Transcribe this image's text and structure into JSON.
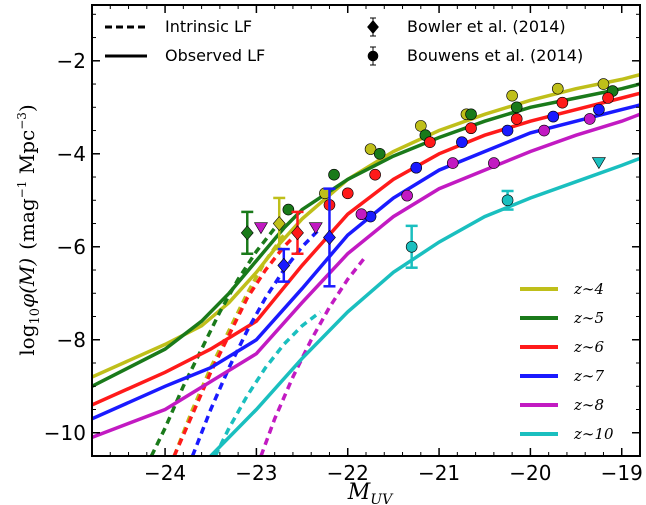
{
  "chart_data": {
    "type": "line",
    "xlabel": "M",
    "xlabel_sub": "UV",
    "ylabel_pre": "log",
    "ylabel_sub": "10",
    "ylabel_mid": "φ(M)",
    "ylabel_unit_open": "(mag",
    "ylabel_unit_exp1": "−1",
    "ylabel_unit_mid": " Mpc",
    "ylabel_unit_exp2": "−3",
    "ylabel_unit_close": ")",
    "xlim": [
      -24.8,
      -18.8
    ],
    "ylim": [
      -10.5,
      -0.8
    ],
    "x_axis_inverted": false,
    "xticks": [
      -24,
      -23,
      -22,
      -21,
      -20,
      -19
    ],
    "xtick_labels": [
      "−24",
      "−23",
      "−22",
      "−21",
      "−20",
      "−19"
    ],
    "yticks": [
      -10,
      -8,
      -6,
      -4,
      -2
    ],
    "ytick_labels": [
      "−10",
      "−8",
      "−6",
      "−4",
      "−2"
    ],
    "grid": false,
    "style_legend": {
      "placement": "top",
      "entries": [
        {
          "label": "Intrinsic LF",
          "style": "dashed"
        },
        {
          "label": "Observed LF",
          "style": "solid"
        },
        {
          "label": "Bowler et al. (2014)",
          "marker": "diamond"
        },
        {
          "label": "Bouwens et al. (2014)",
          "marker": "circle"
        }
      ]
    },
    "series_legend_placement": "bottom-right",
    "series": [
      {
        "name": "z∼4",
        "color": "#bfbf1a",
        "observed": {
          "x": [
            -24.8,
            -24.0,
            -23.6,
            -23.3,
            -23.0,
            -22.8,
            -22.5,
            -22.0,
            -21.5,
            -21.0,
            -20.5,
            -20.0,
            -19.5,
            -19.0,
            -18.8
          ],
          "y": [
            -8.8,
            -8.1,
            -7.7,
            -7.2,
            -6.55,
            -6.05,
            -5.4,
            -4.55,
            -3.95,
            -3.5,
            -3.15,
            -2.85,
            -2.6,
            -2.4,
            -2.3
          ]
        },
        "intrinsic": {
          "x": [
            -23.9,
            -23.7,
            -23.5,
            -23.3,
            -23.1,
            -22.9,
            -22.7
          ],
          "y": [
            -10.5,
            -9.5,
            -8.6,
            -7.8,
            -7.0,
            -6.3,
            -5.75
          ]
        },
        "points": [
          {
            "x": -22.75,
            "y": -5.5,
            "yerr": 0.55,
            "marker": "diamond"
          },
          {
            "x": -22.25,
            "y": -4.85,
            "marker": "circle"
          },
          {
            "x": -21.75,
            "y": -3.9,
            "marker": "circle"
          },
          {
            "x": -21.2,
            "y": -3.4,
            "marker": "circle"
          },
          {
            "x": -20.7,
            "y": -3.15,
            "marker": "circle"
          },
          {
            "x": -20.2,
            "y": -2.75,
            "marker": "circle"
          },
          {
            "x": -19.7,
            "y": -2.6,
            "marker": "circle"
          },
          {
            "x": -19.2,
            "y": -2.5,
            "marker": "circle"
          }
        ]
      },
      {
        "name": "z∼5",
        "color": "#1a7a1a",
        "observed": {
          "x": [
            -24.8,
            -24.0,
            -23.6,
            -23.3,
            -23.0,
            -22.7,
            -22.5,
            -22.0,
            -21.5,
            -21.0,
            -20.5,
            -20.0,
            -19.5,
            -19.0,
            -18.8
          ],
          "y": [
            -9.0,
            -8.2,
            -7.6,
            -7.0,
            -6.3,
            -5.6,
            -5.2,
            -4.55,
            -4.05,
            -3.65,
            -3.3,
            -3.0,
            -2.8,
            -2.6,
            -2.5
          ]
        },
        "intrinsic": {
          "x": [
            -24.15,
            -24.0,
            -23.8,
            -23.6,
            -23.4,
            -23.2,
            -23.0,
            -22.8
          ],
          "y": [
            -10.5,
            -9.9,
            -9.0,
            -8.2,
            -7.4,
            -6.7,
            -6.1,
            -5.6
          ]
        },
        "points": [
          {
            "x": -23.1,
            "y": -5.7,
            "yerr": 0.45,
            "marker": "diamond"
          },
          {
            "x": -22.65,
            "y": -5.2,
            "marker": "circle"
          },
          {
            "x": -22.15,
            "y": -4.45,
            "marker": "circle"
          },
          {
            "x": -21.65,
            "y": -4.0,
            "marker": "circle"
          },
          {
            "x": -21.15,
            "y": -3.6,
            "marker": "circle"
          },
          {
            "x": -20.65,
            "y": -3.15,
            "marker": "circle"
          },
          {
            "x": -20.15,
            "y": -3.0,
            "marker": "circle"
          },
          {
            "x": -19.1,
            "y": -2.65,
            "marker": "circle"
          }
        ]
      },
      {
        "name": "z∼6",
        "color": "#ff1a1a",
        "observed": {
          "x": [
            -24.8,
            -24.0,
            -23.5,
            -23.0,
            -22.5,
            -22.0,
            -21.5,
            -21.0,
            -20.5,
            -20.0,
            -19.5,
            -19.0,
            -18.8
          ],
          "y": [
            -9.4,
            -8.7,
            -8.2,
            -7.6,
            -6.4,
            -5.3,
            -4.55,
            -4.0,
            -3.6,
            -3.3,
            -3.05,
            -2.8,
            -2.7
          ]
        },
        "intrinsic": {
          "x": [
            -23.9,
            -23.7,
            -23.5,
            -23.3,
            -23.1,
            -22.9,
            -22.7,
            -22.5
          ],
          "y": [
            -10.5,
            -9.6,
            -8.7,
            -7.9,
            -7.1,
            -6.5,
            -6.0,
            -5.6
          ]
        },
        "points": [
          {
            "x": -22.55,
            "y": -5.7,
            "yerr": 0.45,
            "marker": "diamond"
          },
          {
            "x": -22.2,
            "y": -5.1,
            "marker": "circle"
          },
          {
            "x": -22.0,
            "y": -4.85,
            "marker": "circle"
          },
          {
            "x": -21.7,
            "y": -4.45,
            "marker": "circle"
          },
          {
            "x": -21.1,
            "y": -3.75,
            "marker": "circle"
          },
          {
            "x": -20.65,
            "y": -3.45,
            "marker": "circle"
          },
          {
            "x": -20.15,
            "y": -3.25,
            "marker": "circle"
          },
          {
            "x": -19.65,
            "y": -2.9,
            "marker": "circle"
          },
          {
            "x": -19.15,
            "y": -2.8,
            "marker": "circle"
          }
        ]
      },
      {
        "name": "z∼7",
        "color": "#1a1aff",
        "observed": {
          "x": [
            -24.8,
            -24.0,
            -23.5,
            -23.0,
            -22.5,
            -22.0,
            -21.5,
            -21.0,
            -20.5,
            -20.0,
            -19.5,
            -19.0,
            -18.8
          ],
          "y": [
            -9.7,
            -9.0,
            -8.6,
            -8.0,
            -6.9,
            -5.75,
            -4.95,
            -4.35,
            -3.95,
            -3.55,
            -3.3,
            -3.05,
            -2.95
          ]
        },
        "intrinsic": {
          "x": [
            -23.7,
            -23.5,
            -23.3,
            -23.1,
            -22.9,
            -22.7,
            -22.5,
            -22.3
          ],
          "y": [
            -10.5,
            -9.5,
            -8.6,
            -7.8,
            -7.1,
            -6.5,
            -6.0,
            -5.6
          ]
        },
        "points": [
          {
            "x": -22.7,
            "y": -6.4,
            "yerr": 0.35,
            "marker": "diamond"
          },
          {
            "x": -22.2,
            "y": -5.8,
            "yerr": 1.05,
            "marker": "diamond"
          },
          {
            "x": -21.75,
            "y": -5.35,
            "marker": "circle"
          },
          {
            "x": -21.25,
            "y": -4.3,
            "marker": "circle"
          },
          {
            "x": -20.75,
            "y": -3.75,
            "marker": "circle"
          },
          {
            "x": -20.25,
            "y": -3.5,
            "marker": "circle"
          },
          {
            "x": -19.75,
            "y": -3.2,
            "marker": "circle"
          },
          {
            "x": -19.25,
            "y": -3.05,
            "marker": "circle"
          }
        ]
      },
      {
        "name": "z∼8",
        "color": "#c21ac2",
        "observed": {
          "x": [
            -24.8,
            -24.0,
            -23.5,
            -23.0,
            -22.5,
            -22.0,
            -21.5,
            -21.0,
            -20.5,
            -20.0,
            -19.5,
            -19.0,
            -18.8
          ],
          "y": [
            -10.1,
            -9.5,
            -8.9,
            -8.3,
            -7.2,
            -6.15,
            -5.35,
            -4.75,
            -4.35,
            -3.95,
            -3.6,
            -3.3,
            -3.15
          ]
        },
        "intrinsic": {
          "x": [
            -22.95,
            -22.8,
            -22.6,
            -22.4,
            -22.2,
            -22.0,
            -21.8
          ],
          "y": [
            -10.5,
            -9.7,
            -8.8,
            -8.0,
            -7.3,
            -6.7,
            -6.2
          ]
        },
        "points": [
          {
            "x": -22.95,
            "y": -5.6,
            "marker": "triangle-down"
          },
          {
            "x": -22.35,
            "y": -5.6,
            "marker": "triangle-down"
          },
          {
            "x": -21.85,
            "y": -5.3,
            "marker": "circle"
          },
          {
            "x": -21.35,
            "y": -4.9,
            "marker": "circle"
          },
          {
            "x": -20.85,
            "y": -4.2,
            "marker": "circle"
          },
          {
            "x": -20.4,
            "y": -4.2,
            "marker": "circle"
          },
          {
            "x": -19.85,
            "y": -3.5,
            "marker": "circle"
          },
          {
            "x": -19.35,
            "y": -3.25,
            "marker": "circle"
          }
        ]
      },
      {
        "name": "z∼10",
        "color": "#1abfbf",
        "observed": {
          "x": [
            -23.5,
            -23.0,
            -22.5,
            -22.0,
            -21.5,
            -21.0,
            -20.5,
            -20.0,
            -19.5,
            -19.0,
            -18.8
          ],
          "y": [
            -10.5,
            -9.5,
            -8.4,
            -7.4,
            -6.55,
            -5.9,
            -5.35,
            -4.95,
            -4.6,
            -4.25,
            -4.1
          ]
        },
        "intrinsic": {
          "x": [
            -23.45,
            -23.3,
            -23.1,
            -22.9,
            -22.7,
            -22.5,
            -22.3
          ],
          "y": [
            -10.5,
            -9.9,
            -9.2,
            -8.6,
            -8.1,
            -7.7,
            -7.4
          ]
        },
        "points": [
          {
            "x": -21.3,
            "y": -6.0,
            "yerr": 0.45,
            "marker": "circle"
          },
          {
            "x": -20.25,
            "y": -5.0,
            "yerr": 0.2,
            "marker": "circle"
          },
          {
            "x": -19.25,
            "y": -4.2,
            "marker": "triangle-down"
          }
        ]
      }
    ]
  }
}
